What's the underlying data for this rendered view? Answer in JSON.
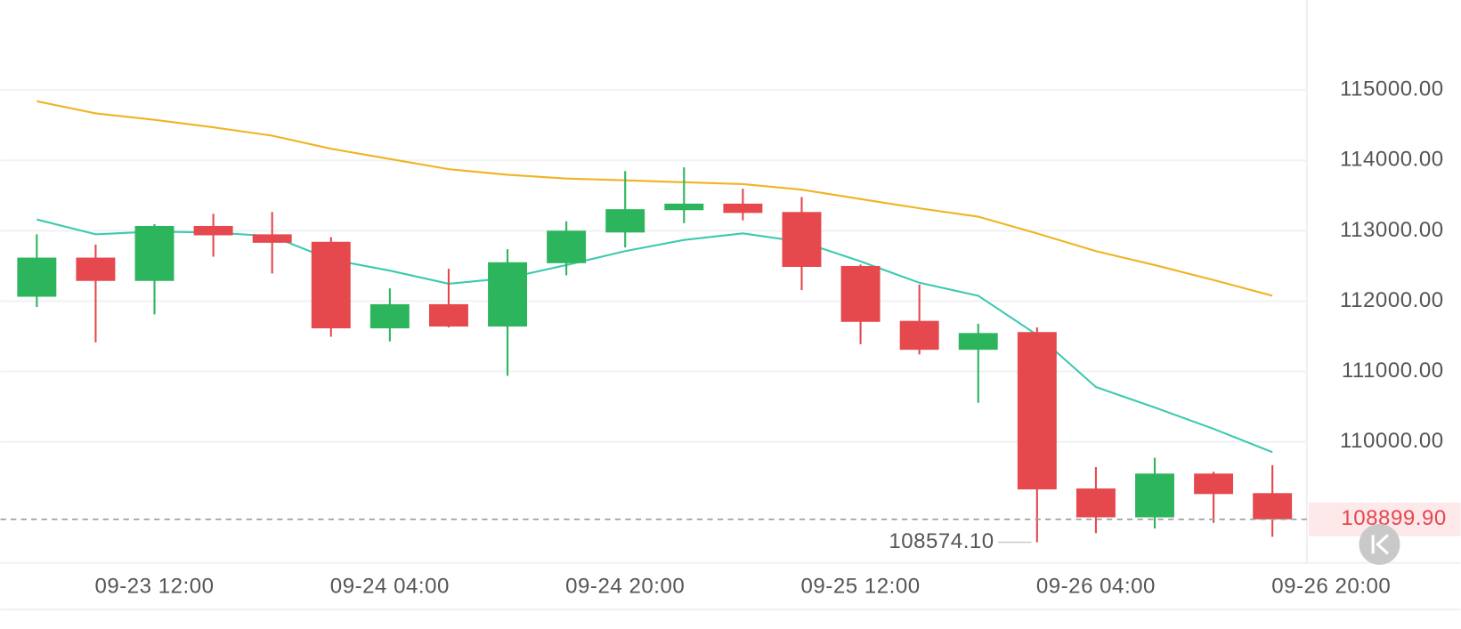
{
  "chart_data": {
    "type": "candlestick",
    "categories": [
      null,
      null,
      "09-23 12:00",
      null,
      null,
      null,
      "09-24 04:00",
      null,
      null,
      null,
      "09-24 20:00",
      null,
      null,
      null,
      "09-25 12:00",
      null,
      null,
      null,
      "09-26 04:00",
      null,
      null,
      null,
      "09-26 20:00"
    ],
    "open": [
      112063,
      112619,
      112288,
      113069,
      112950,
      112844,
      111614,
      111957,
      111640,
      112540,
      112976,
      113293,
      113386,
      113267,
      112500,
      111720,
      111309,
      111561,
      109338,
      108928,
      109550,
      109272,
      null
    ],
    "high": [
      112950,
      112804,
      113095,
      113241,
      113267,
      112910,
      112182,
      112460,
      112738,
      113135,
      113849,
      113902,
      113598,
      113479,
      112520,
      112235,
      111680,
      111627,
      109642,
      109775,
      109576,
      109669,
      null
    ],
    "low": [
      111918,
      111415,
      111812,
      112632,
      112394,
      111494,
      111428,
      111627,
      110939,
      112367,
      112764,
      113108,
      113148,
      112156,
      111389,
      111243,
      110555,
      108574.1,
      108704,
      108770,
      108849,
      108651,
      null
    ],
    "close": [
      112619,
      112288,
      113069,
      112936,
      112830,
      111614,
      111957,
      111640,
      112553,
      113002,
      113307,
      113386,
      113254,
      112487,
      111706,
      111309,
      111547,
      109325,
      108928,
      109550,
      109259,
      108899.9,
      null
    ],
    "up_color": "#2db55d",
    "down_color": "#e5484d",
    "lines": [
      {
        "color": "#3cc9b0",
        "values": [
          113161,
          112950,
          112989,
          112976,
          112923,
          112592,
          112434,
          112248,
          112328,
          112513,
          112711,
          112870,
          112963,
          112844,
          112566,
          112262,
          112077,
          111521,
          110780,
          110489,
          110185,
          109854,
          null
        ]
      },
      {
        "color": "#f0b323",
        "values": [
          114841,
          114669,
          114577,
          114471,
          114352,
          114166,
          114021,
          113876,
          113796,
          113743,
          113717,
          113690,
          113664,
          113585,
          113452,
          113320,
          113201,
          112963,
          112711,
          112513,
          112301,
          112077,
          null
        ]
      }
    ],
    "ylim": [
      108280,
      116280
    ],
    "yticks": [
      {
        "value": 110000,
        "label": "110000.00"
      },
      {
        "value": 111000,
        "label": "111000.00"
      },
      {
        "value": 112000,
        "label": "112000.00"
      },
      {
        "value": 113000,
        "label": "113000.00"
      },
      {
        "value": 114000,
        "label": "114000.00"
      },
      {
        "value": 115000,
        "label": "115000.00"
      }
    ],
    "grid": true,
    "current_price": {
      "value": 108899.9,
      "label": "108899.90"
    },
    "low_label": "108574.10"
  }
}
